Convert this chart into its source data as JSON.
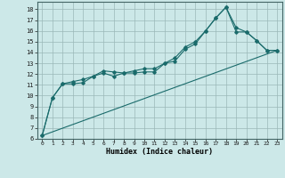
{
  "xlabel": "Humidex (Indice chaleur)",
  "ylabel": "",
  "bg_color": "#cce8e8",
  "line_color": "#1a6b6b",
  "xlim": [
    -0.5,
    23.5
  ],
  "ylim": [
    6,
    18.7
  ],
  "xticks": [
    0,
    1,
    2,
    3,
    4,
    5,
    6,
    7,
    8,
    9,
    10,
    11,
    12,
    13,
    14,
    15,
    16,
    17,
    18,
    19,
    20,
    21,
    22,
    23
  ],
  "yticks": [
    6,
    7,
    8,
    9,
    10,
    11,
    12,
    13,
    14,
    15,
    16,
    17,
    18
  ],
  "line1_x": [
    0,
    1,
    2,
    3,
    4,
    5,
    6,
    7,
    8,
    9,
    10,
    11,
    12,
    13,
    14,
    15,
    16,
    17,
    18,
    19,
    20,
    21,
    22,
    23
  ],
  "line1_y": [
    6.3,
    9.8,
    11.1,
    11.1,
    11.2,
    11.8,
    12.1,
    11.8,
    12.1,
    12.1,
    12.2,
    12.2,
    13.0,
    13.2,
    14.3,
    14.8,
    16.0,
    17.2,
    18.2,
    15.9,
    15.9,
    15.1,
    14.2,
    14.2
  ],
  "line2_x": [
    0,
    1,
    2,
    3,
    4,
    5,
    6,
    7,
    8,
    9,
    10,
    11,
    12,
    13,
    14,
    15,
    16,
    17,
    18,
    19,
    20,
    21,
    22,
    23
  ],
  "line2_y": [
    6.3,
    9.8,
    11.1,
    11.3,
    11.5,
    11.8,
    12.3,
    12.2,
    12.1,
    12.3,
    12.5,
    12.5,
    13.0,
    13.5,
    14.5,
    15.0,
    16.0,
    17.2,
    18.2,
    16.3,
    15.9,
    15.1,
    14.2,
    14.2
  ],
  "line3_x": [
    0,
    23
  ],
  "line3_y": [
    6.3,
    14.2
  ],
  "figsize": [
    3.2,
    2.0
  ],
  "dpi": 100
}
